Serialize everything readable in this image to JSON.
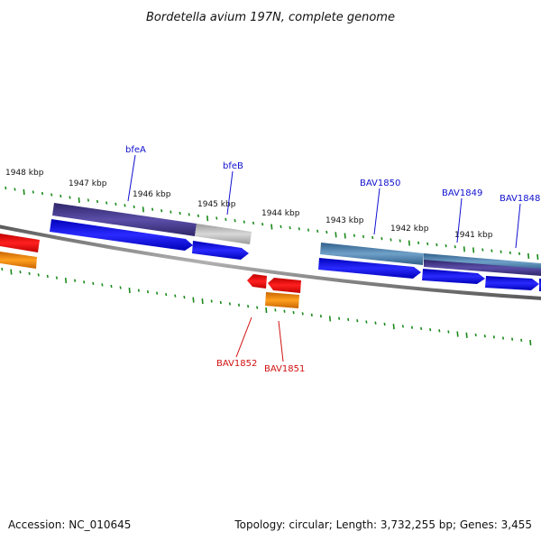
{
  "title": "Bordetella avium 197N, complete genome",
  "footer": {
    "accession": "Accession: NC_010645",
    "topology": "Topology: circular; Length: 3,732,255 bp; Genes: 3,455"
  },
  "kbp_labels": [
    "1948 kbp",
    "1947 kbp",
    "1946 kbp",
    "1945 kbp",
    "1944 kbp",
    "1943 kbp",
    "1942 kbp",
    "1941 kbp"
  ],
  "forward_genes": [
    "bfeA",
    "bfeB",
    "BAV1850",
    "BAV1849",
    "BAV1848"
  ],
  "reverse_genes": [
    "BAV1852",
    "BAV1851"
  ],
  "colors": {
    "forward_label": "#1010d0",
    "reverse_label": "#d01010",
    "forward_cds": "#0000ee",
    "reverse_cds": "#ee0000",
    "reverse_gene": "#ff8c00",
    "tick": "#1a8a1a",
    "backbone": "#808080"
  }
}
